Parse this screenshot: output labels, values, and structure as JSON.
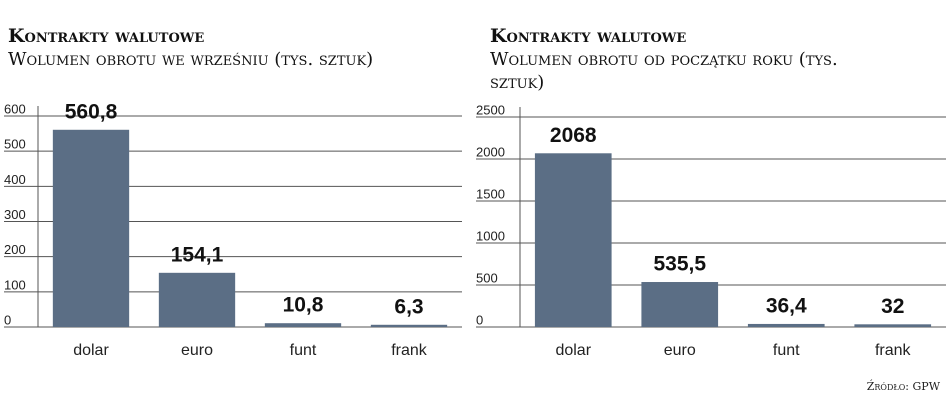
{
  "chart_data": [
    {
      "type": "bar",
      "title": "Kontrakty walutowe",
      "subtitle": "Wolumen obrotu we wrześniu (tys. sztuk)",
      "categories": [
        "dolar",
        "euro",
        "funt",
        "frank"
      ],
      "values": [
        560.8,
        154.1,
        10.8,
        6.3
      ],
      "value_labels": [
        "560,8",
        "154,1",
        "10,8",
        "6,3"
      ],
      "color": "#5b6e85",
      "ylim": [
        0,
        600
      ],
      "yticks": [
        0,
        100,
        200,
        300,
        400,
        500,
        600
      ],
      "grid": true
    },
    {
      "type": "bar",
      "title": "Kontrakty walutowe",
      "subtitle": "Wolumen obrotu od początku roku (tys. sztuk)",
      "categories": [
        "dolar",
        "euro",
        "funt",
        "frank"
      ],
      "values": [
        2068,
        535.5,
        36.4,
        32
      ],
      "value_labels": [
        "2068",
        "535,5",
        "36,4",
        "32"
      ],
      "color": "#5b6e85",
      "ylim": [
        0,
        2500
      ],
      "yticks": [
        0,
        500,
        1000,
        1500,
        2000,
        2500
      ],
      "grid": true
    }
  ],
  "source": "Źródło: GPW"
}
